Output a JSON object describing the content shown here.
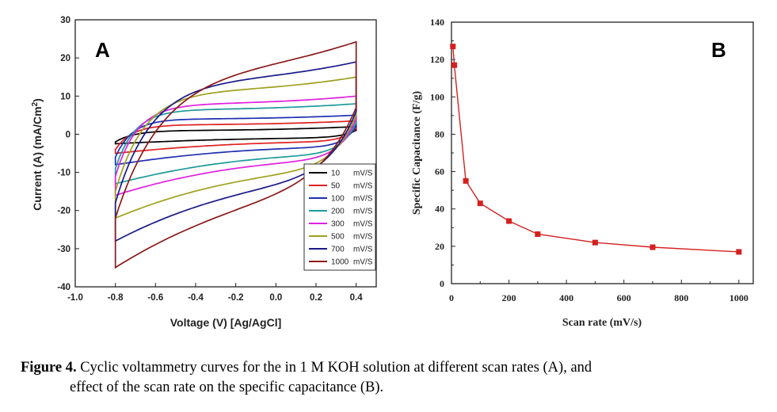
{
  "chart_data": [
    {
      "panel": "A",
      "type": "line",
      "xlabel": "Voltage (V) [Ag/AgCl]",
      "ylabel_main": "Current (A) (mA/Cm",
      "ylabel_sup": "2",
      "ylabel_end": ")",
      "xlim": [
        -1.0,
        0.5
      ],
      "ylim": [
        -40,
        30
      ],
      "xticks": [
        "-1.0",
        "-0.8",
        "-0.6",
        "-0.4",
        "-0.2",
        "0.0",
        "0.2",
        "0.4"
      ],
      "yticks": [
        "30",
        "20",
        "10",
        "0",
        "-10",
        "-20",
        "-30",
        "-40"
      ],
      "series": [
        {
          "name": "10",
          "unit": "mV/S",
          "color": "#000000",
          "v_min": -0.8,
          "v_max": 0.4,
          "upper_start": -2,
          "upper_end": 2,
          "upper_mid": 1.0,
          "lower_start": -2.5,
          "lower_end": 1,
          "lower_mid": -1.0,
          "knee": 0.08
        },
        {
          "name": "50",
          "unit": "mV/S",
          "color": "#e02020",
          "v_min": -0.8,
          "v_max": 0.4,
          "upper_start": -4,
          "upper_end": 3.5,
          "upper_mid": 2.5,
          "lower_start": -5,
          "lower_end": 1.5,
          "lower_mid": -2.0,
          "knee": 0.07
        },
        {
          "name": "100",
          "unit": "mV/S",
          "color": "#1f2fb0",
          "v_min": -0.8,
          "v_max": 0.4,
          "upper_start": -6,
          "upper_end": 5,
          "upper_mid": 4.0,
          "lower_start": -8,
          "lower_end": 2,
          "lower_mid": -3.5,
          "knee": 0.07
        },
        {
          "name": "200",
          "unit": "mV/S",
          "color": "#1e9a9a",
          "v_min": -0.8,
          "v_max": 0.4,
          "upper_start": -9,
          "upper_end": 8,
          "upper_mid": 6.5,
          "lower_start": -13,
          "lower_end": 3,
          "lower_mid": -5.5,
          "knee": 0.08
        },
        {
          "name": "300",
          "unit": "mV/S",
          "color": "#e020e0",
          "v_min": -0.8,
          "v_max": 0.4,
          "upper_start": -11,
          "upper_end": 10,
          "upper_mid": 8.0,
          "lower_start": -16,
          "lower_end": 4,
          "lower_mid": -7.0,
          "knee": 0.09
        },
        {
          "name": "500",
          "unit": "mV/S",
          "color": "#a0a020",
          "v_min": -0.8,
          "v_max": 0.4,
          "upper_start": -15,
          "upper_end": 15,
          "upper_mid": 11.5,
          "lower_start": -22,
          "lower_end": 5,
          "lower_mid": -10.0,
          "knee": 0.12
        },
        {
          "name": "700",
          "unit": "mV/S",
          "color": "#1a1a8a",
          "v_min": -0.8,
          "v_max": 0.4,
          "upper_start": -18,
          "upper_end": 19,
          "upper_mid": 14.5,
          "lower_start": -28,
          "lower_end": 6,
          "lower_mid": -13.0,
          "knee": 0.15
        },
        {
          "name": "1000",
          "unit": "mV/S",
          "color": "#8b1a1a",
          "v_min": -0.8,
          "v_max": 0.4,
          "upper_start": -22,
          "upper_end": 24.5,
          "upper_mid": 18.0,
          "lower_start": -35,
          "lower_end": 7,
          "lower_mid": -17.0,
          "knee": 0.2
        }
      ]
    },
    {
      "panel": "B",
      "type": "line",
      "xlabel": "Scan rate (mV/s)",
      "ylabel": "Specific Capacitance (F/g)",
      "xlim": [
        0,
        1050
      ],
      "ylim": [
        0,
        140
      ],
      "xticks": [
        "0",
        "200",
        "400",
        "600",
        "800",
        "1000"
      ],
      "yticks": [
        "0",
        "20",
        "40",
        "60",
        "80",
        "100",
        "120",
        "140"
      ],
      "color": "#d42020",
      "x": [
        5,
        10,
        50,
        100,
        200,
        300,
        500,
        700,
        1000
      ],
      "y": [
        127,
        117,
        55,
        43,
        33.5,
        26.5,
        22,
        19.5,
        17
      ]
    }
  ],
  "caption": {
    "label": "Figure 4.",
    "line1": " Cyclic voltammetry curves for the in 1 M KOH solution at different scan rates (A), and",
    "line2": "effect of the scan rate on the specific capacitance (B)."
  }
}
